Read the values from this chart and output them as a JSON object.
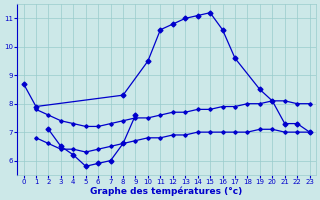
{
  "background_color": "#cce8e8",
  "grid_color": "#99cccc",
  "line_color": "#0000cc",
  "xlabel": "Graphe des températures (°c)",
  "ylim": [
    5.5,
    11.5
  ],
  "xlim": [
    -0.5,
    23.5
  ],
  "yticks": [
    6,
    7,
    8,
    9,
    10,
    11
  ],
  "xticks": [
    0,
    1,
    2,
    3,
    4,
    5,
    6,
    7,
    8,
    9,
    10,
    11,
    12,
    13,
    14,
    15,
    16,
    17,
    18,
    19,
    20,
    21,
    22,
    23
  ],
  "line1_x": [
    0,
    1,
    8,
    10,
    11,
    12,
    13,
    14,
    15,
    16,
    17,
    19,
    20,
    21,
    22,
    23
  ],
  "line1_y": [
    8.7,
    7.9,
    8.3,
    9.5,
    10.6,
    10.8,
    11.0,
    11.1,
    11.2,
    10.6,
    9.6,
    8.5,
    8.1,
    7.3,
    7.3,
    7.0
  ],
  "line2_x": [
    2,
    3,
    4,
    5,
    6,
    7,
    8,
    9
  ],
  "line2_y": [
    7.1,
    6.5,
    6.2,
    5.8,
    5.9,
    6.0,
    6.6,
    7.6
  ],
  "line3_x": [
    1,
    2,
    3,
    4,
    5,
    6,
    7,
    8,
    9,
    10,
    11,
    12,
    13,
    14,
    15,
    16,
    17,
    18,
    19,
    20,
    21,
    22,
    23
  ],
  "line3_y": [
    7.8,
    7.6,
    7.4,
    7.3,
    7.2,
    7.2,
    7.3,
    7.4,
    7.5,
    7.5,
    7.6,
    7.7,
    7.7,
    7.8,
    7.8,
    7.9,
    7.9,
    8.0,
    8.0,
    8.1,
    8.1,
    8.0,
    8.0
  ],
  "line4_x": [
    1,
    2,
    3,
    4,
    5,
    6,
    7,
    8,
    9,
    10,
    11,
    12,
    13,
    14,
    15,
    16,
    17,
    18,
    19,
    20,
    21,
    22,
    23
  ],
  "line4_y": [
    6.8,
    6.6,
    6.4,
    6.4,
    6.3,
    6.4,
    6.5,
    6.6,
    6.7,
    6.8,
    6.8,
    6.9,
    6.9,
    7.0,
    7.0,
    7.0,
    7.0,
    7.0,
    7.1,
    7.1,
    7.0,
    7.0,
    7.0
  ]
}
